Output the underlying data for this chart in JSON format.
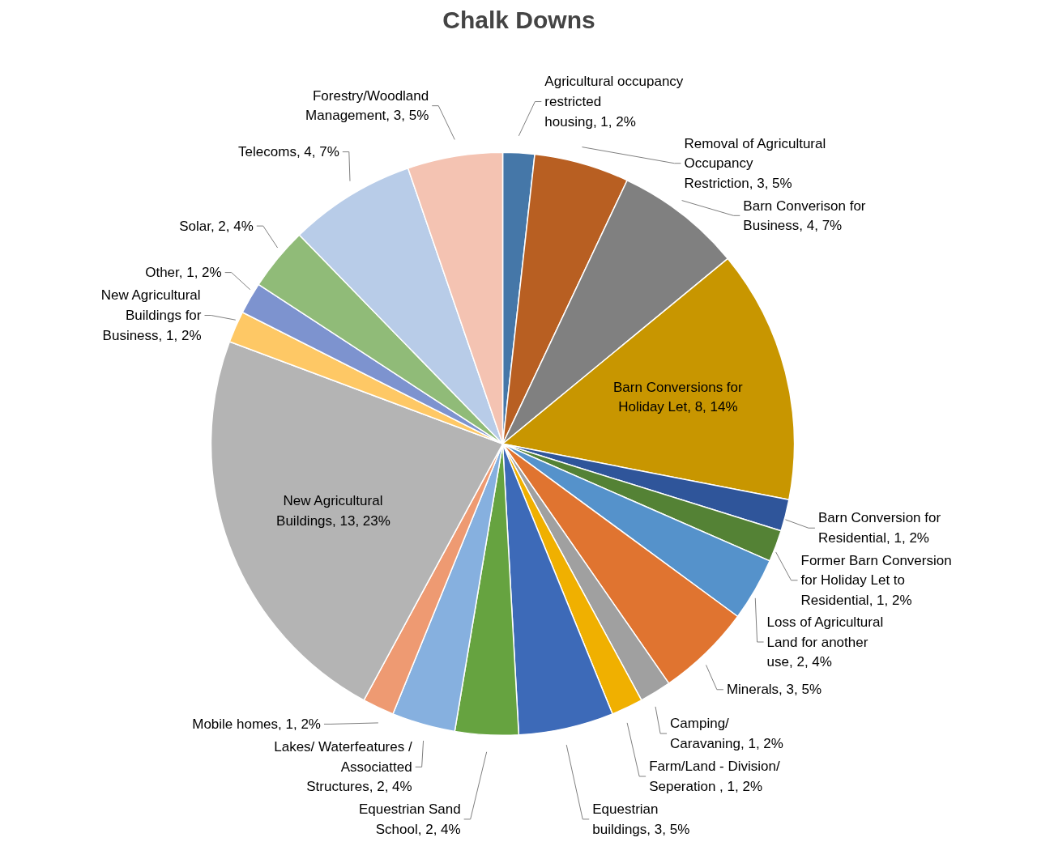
{
  "chart_data": {
    "type": "pie",
    "title": "Chalk Downs",
    "categories": [
      "Agricultural occupancy restricted housing",
      "Removal of Agricultural Occupancy Restriction",
      "Barn Converison for Business",
      "Barn Conversions for Holiday Let",
      "Barn Conversion for Residential",
      "Former Barn Conversion for Holiday Let to Residential",
      "Loss of Agricultural Land for another use",
      "Minerals",
      "Camping/ Caravaning",
      "Farm/Land - Division/ Seperation ",
      "Equestrian buildings",
      "Equestrian Sand School",
      "Lakes/ Waterfeatures / Associatted Structures",
      "Mobile homes",
      "New Agricultural Buildings",
      "New Agricultural Buildings for Business",
      "Other",
      "Solar",
      "Telecoms",
      "Forestry/Woodland Management"
    ],
    "values": [
      1,
      3,
      4,
      8,
      1,
      1,
      2,
      3,
      1,
      1,
      3,
      2,
      2,
      1,
      13,
      1,
      1,
      2,
      4,
      3
    ],
    "value_labels": [
      "1, 2%",
      "3, 5%",
      "4, 7%",
      "8, 14%",
      "1, 2%",
      "1, 2%",
      "2, 4%",
      "3, 5%",
      "1, 2%",
      "1, 2%",
      "3, 5%",
      "2, 4%",
      "2, 4%",
      "1, 2%",
      "13, 23%",
      "1, 2%",
      "1, 2%",
      "2, 4%",
      "4, 7%",
      "3, 5%"
    ],
    "colors": [
      "#4577a8",
      "#b85f22",
      "#808080",
      "#c89600",
      "#2f559a",
      "#548235",
      "#5592cb",
      "#e07430",
      "#a0a0a0",
      "#f0b000",
      "#3d6ab8",
      "#66a340",
      "#86b0df",
      "#ee9a72",
      "#b4b4b4",
      "#fec865",
      "#7d93cf",
      "#90bb78",
      "#b8cce8",
      "#f4c3b2"
    ],
    "legend": false
  }
}
